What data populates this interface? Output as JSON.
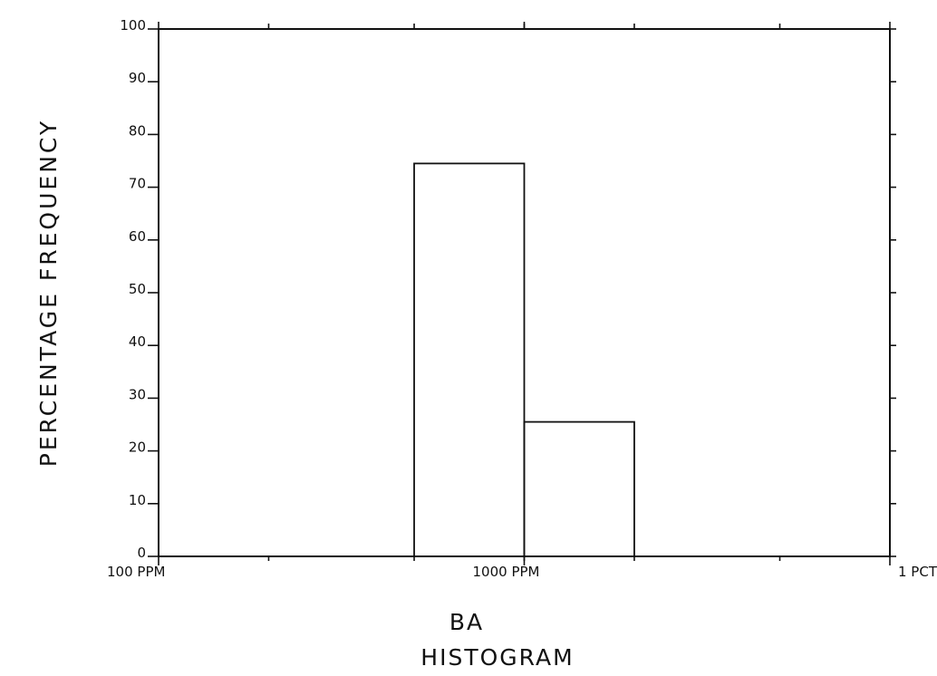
{
  "chart_data": {
    "type": "bar",
    "title": "HISTOGRAM",
    "xlabel": "BA",
    "ylabel": "PERCENTAGE FREQUENCY",
    "x_scale": "log",
    "x_unit": "ppm",
    "xlim": [
      100,
      10000
    ],
    "ylim": [
      0,
      100
    ],
    "grid": false,
    "x_ticks": [
      {
        "value": 100,
        "label": "100 PPM"
      },
      {
        "value": 1000,
        "label": "1000 PPM"
      },
      {
        "value": 10000,
        "label": "1 PCT"
      }
    ],
    "y_ticks": [
      {
        "value": 0,
        "label": "0"
      },
      {
        "value": 10,
        "label": "10"
      },
      {
        "value": 20,
        "label": "20"
      },
      {
        "value": 30,
        "label": "30"
      },
      {
        "value": 40,
        "label": "40"
      },
      {
        "value": 50,
        "label": "50"
      },
      {
        "value": 60,
        "label": "60"
      },
      {
        "value": 70,
        "label": "70"
      },
      {
        "value": 80,
        "label": "80"
      },
      {
        "value": 90,
        "label": "90"
      },
      {
        "value": 100,
        "label": "100"
      }
    ],
    "bins": [
      {
        "start": 500,
        "end": 1000,
        "value": 74.5
      },
      {
        "start": 1000,
        "end": 2000,
        "value": 25.5
      }
    ],
    "minor_x_ticks": [
      200,
      500,
      1000,
      2000,
      5000
    ]
  }
}
